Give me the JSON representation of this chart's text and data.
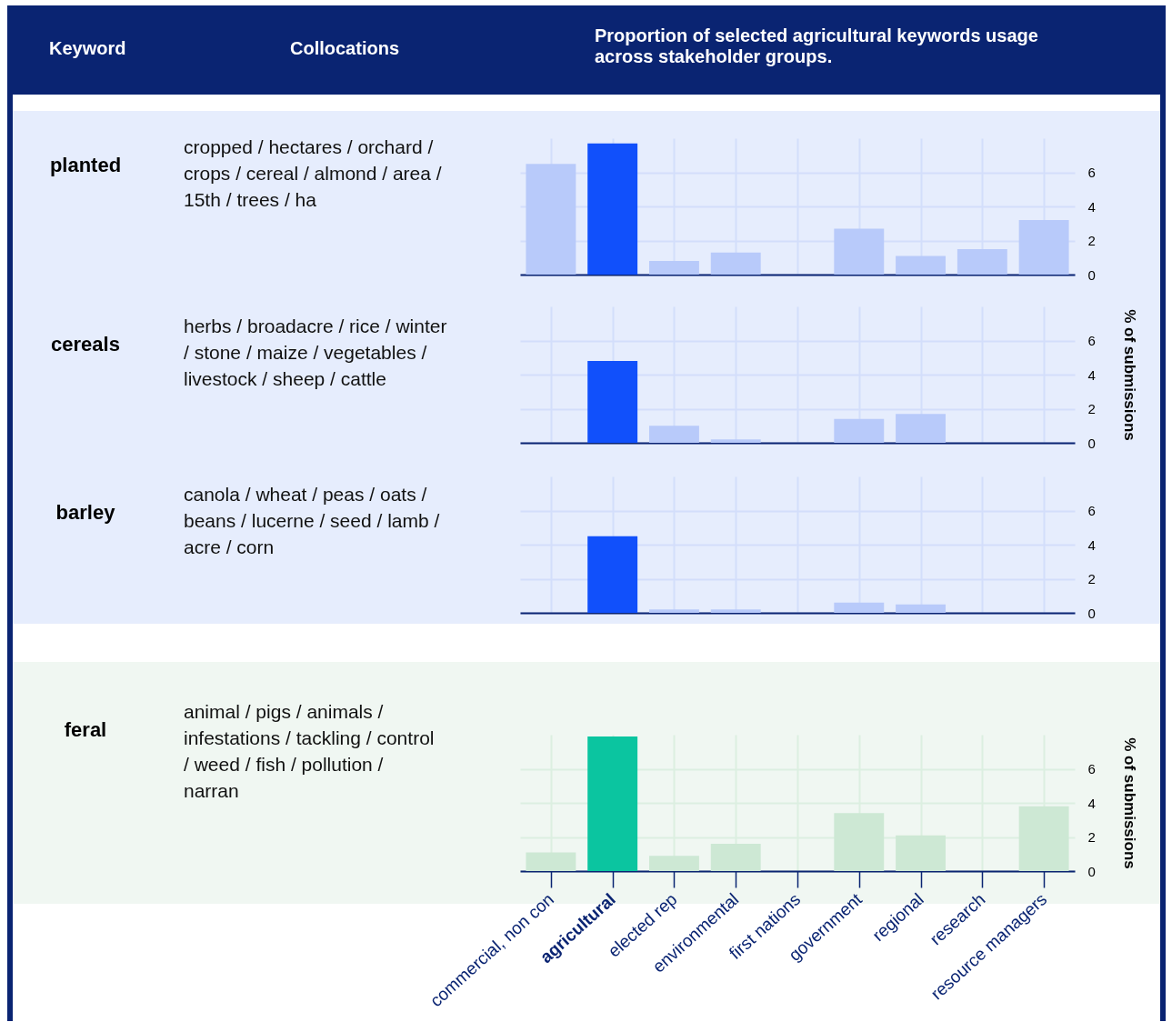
{
  "chart_data": [
    {
      "type": "bar",
      "annotations": [
        "Keyword",
        "Collocations",
        "Proportion of selected agricultural keywords usage across stakeholder groups.",
        "planted",
        "cropped / hectares / orchard / crops / cereal / almond / area / 15th / trees / ha"
      ],
      "categories": [
        null,
        null,
        null,
        null,
        null,
        null,
        null,
        null,
        null
      ],
      "values": [
        6.5,
        7.7,
        0.8,
        1.3,
        0,
        2.7,
        1.1,
        1.5,
        3.2
      ],
      "colors": [
        "#b8cafa",
        "#1150fb",
        "#b8cafa",
        "#b8cafa",
        "#b8cafa",
        "#b8cafa",
        "#b8cafa",
        "#b8cafa",
        "#b8cafa"
      ],
      "ylim": [
        0,
        8
      ],
      "yticks": [
        0,
        2,
        4,
        6
      ],
      "grid": true,
      "tick_labels": "y"
    },
    {
      "type": "bar",
      "annotations": [
        "cereals",
        "herbs / broadacre / rice / winter / stone / maize / vegetables / livestock / sheep / cattle"
      ],
      "ylabel": "% of submissions",
      "categories": [
        null,
        null,
        null,
        null,
        null,
        null,
        null,
        null,
        null
      ],
      "values": [
        0,
        4.8,
        1.0,
        0.2,
        0,
        1.4,
        1.7,
        0,
        0
      ],
      "colors": [
        "#b8cafa",
        "#1150fb",
        "#b8cafa",
        "#b8cafa",
        "#b8cafa",
        "#b8cafa",
        "#b8cafa",
        "#b8cafa",
        "#b8cafa"
      ],
      "ylim": [
        0,
        8
      ],
      "yticks": [
        0,
        2,
        4,
        6
      ],
      "grid": true,
      "tick_labels": "y"
    },
    {
      "type": "bar",
      "annotations": [
        "barley",
        "canola / wheat / peas / oats / beans / lucerne / seed / lamb / acre / corn"
      ],
      "categories": [
        null,
        null,
        null,
        null,
        null,
        null,
        null,
        null,
        null
      ],
      "values": [
        0,
        4.5,
        0.2,
        0.2,
        0,
        0.6,
        0.5,
        0,
        0
      ],
      "colors": [
        "#b8cafa",
        "#1150fb",
        "#b8cafa",
        "#b8cafa",
        "#b8cafa",
        "#b8cafa",
        "#b8cafa",
        "#b8cafa",
        "#b8cafa"
      ],
      "ylim": [
        0,
        8
      ],
      "yticks": [
        0,
        2,
        4,
        6
      ],
      "grid": true,
      "tick_labels": "y"
    },
    {
      "type": "bar",
      "annotations": [
        "feral",
        "animal / pigs / animals / infestations / tackling / control / weed / fish / pollution / narran"
      ],
      "ylabel": "% of submissions",
      "categories": [
        "commercial, non con",
        "agricultural",
        "elected rep",
        "environmental",
        "first nations",
        "government",
        "regional",
        "research",
        "resource managers"
      ],
      "values": [
        1.1,
        7.9,
        0.9,
        1.6,
        0,
        3.4,
        2.1,
        0,
        3.8
      ],
      "colors": [
        "#cde8d4",
        "#0bc5a0",
        "#cde8d4",
        "#cde8d4",
        "#cde8d4",
        "#cde8d4",
        "#cde8d4",
        "#cde8d4",
        "#cde8d4"
      ],
      "ylim": [
        0,
        8
      ],
      "yticks": [
        0,
        2,
        4,
        6
      ],
      "grid": true
    }
  ]
}
